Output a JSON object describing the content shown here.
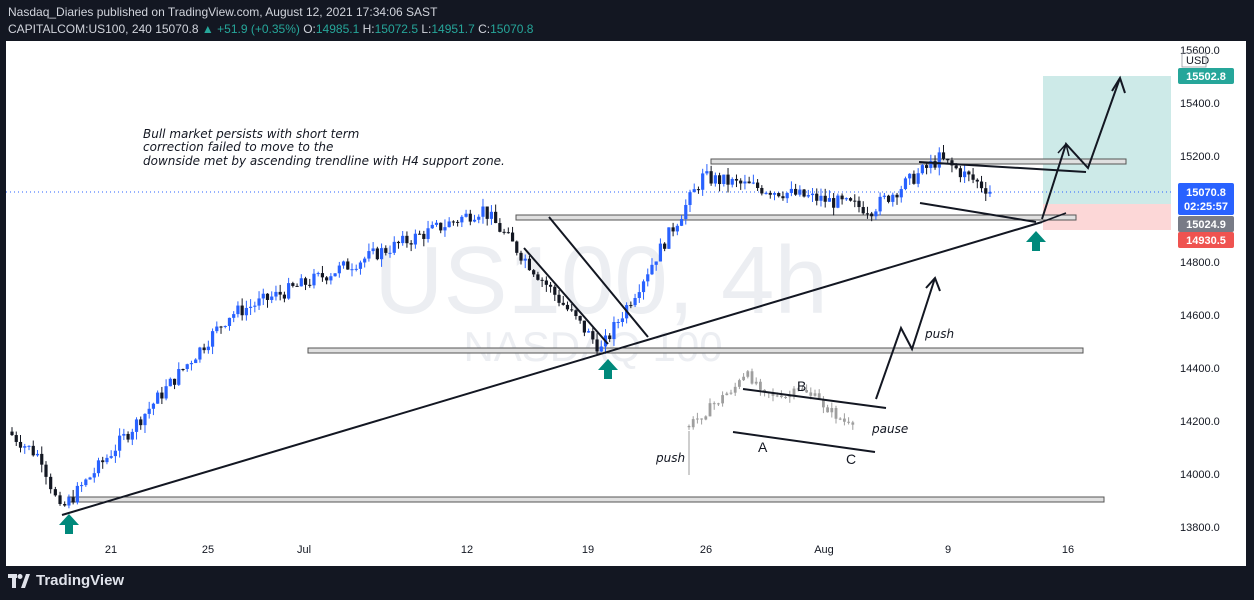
{
  "header": {
    "line1": "Nasdaq_Diaries published on TradingView.com, August 12, 2021 17:34:06 SAST",
    "symbol": "CAPITALCOM:US100, 240",
    "last": "15070.8",
    "change": "▲ +51.9 (+0.35%)",
    "o_label": "O:",
    "o": "14985.1",
    "h_label": "H:",
    "h": "15072.5",
    "l_label": "L:",
    "l": "14951.7",
    "c_label": "C:",
    "c": "15070.8"
  },
  "watermark": {
    "main": "US100, 4h",
    "sub": "NASDAQ 100"
  },
  "footer": {
    "brand": "TradingView"
  },
  "colors": {
    "up": "#2962ff",
    "down": "#131722",
    "green": "#26a69a",
    "red": "#ef5350",
    "target_zone": "#b2dfdb",
    "stop_zone": "#fcd0d0"
  },
  "annotations": {
    "note_lines": [
      "Bull market persists with short term",
      "correction failed to move to the",
      "downside met by ascending trendline with H4 support zone."
    ],
    "push1": "push",
    "push2": "push",
    "pause": "pause",
    "wave_a": "A",
    "wave_b": "B",
    "wave_c": "C"
  },
  "chart_data": {
    "type": "candlestick",
    "currency": "USD",
    "y_ticks": [
      13800,
      14000,
      14200,
      14400,
      14600,
      14800,
      15000,
      15200,
      15400,
      15600
    ],
    "y_tick_labels": [
      "13800.0",
      "14000.0",
      "14200.0",
      "14400.0",
      "14600.0",
      "14800.0",
      "15000.0",
      "15200.0",
      "15400.0",
      "15600.0"
    ],
    "x_tick_labels": [
      "21",
      "25",
      "Jul",
      "12",
      "19",
      "26",
      "Aug",
      "9",
      "16"
    ],
    "price_labels": {
      "target": "15502.8",
      "last": "15070.8",
      "countdown": "02:25:57",
      "entry": "15024.9",
      "stop": "14930.5"
    },
    "ohlc_last": {
      "open": 14985.1,
      "high": 15072.5,
      "low": 14951.7,
      "close": 15070.8
    },
    "key_points": [
      {
        "date": "2021-06-18",
        "price": 13860
      },
      {
        "date": "2021-06-28",
        "price": 14600
      },
      {
        "date": "2021-07-13",
        "price": 15000
      },
      {
        "date": "2021-07-20",
        "price": 14470
      },
      {
        "date": "2021-07-26",
        "price": 15120
      },
      {
        "date": "2021-08-05",
        "price": 15000
      },
      {
        "date": "2021-08-09",
        "price": 15190
      },
      {
        "date": "2021-08-12",
        "price": 15070
      }
    ]
  }
}
